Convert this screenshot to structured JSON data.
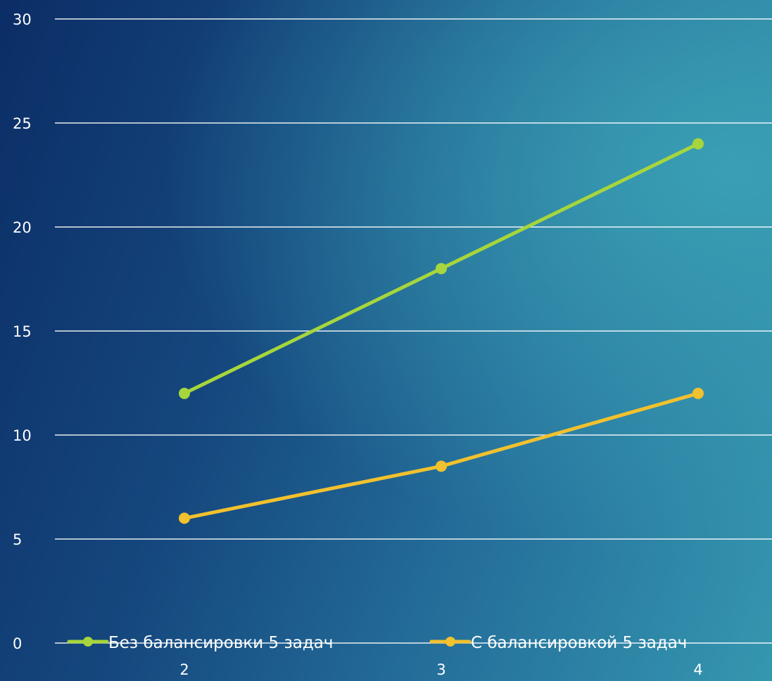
{
  "chart_data": {
    "type": "line",
    "title": "",
    "xlabel": "",
    "ylabel": "",
    "x": [
      "2",
      "3",
      "4"
    ],
    "ylim": [
      0,
      30
    ],
    "yticks": [
      0,
      5,
      10,
      15,
      20,
      25,
      30
    ],
    "grid": true,
    "legend_position": "bottom",
    "series": [
      {
        "name": "Без балансировки 5 задач",
        "values": [
          12,
          18,
          24
        ],
        "color": "#a6d63c"
      },
      {
        "name": "С балансировкой 5 задач",
        "values": [
          6,
          8.5,
          12
        ],
        "color": "#f2c12e"
      }
    ]
  }
}
